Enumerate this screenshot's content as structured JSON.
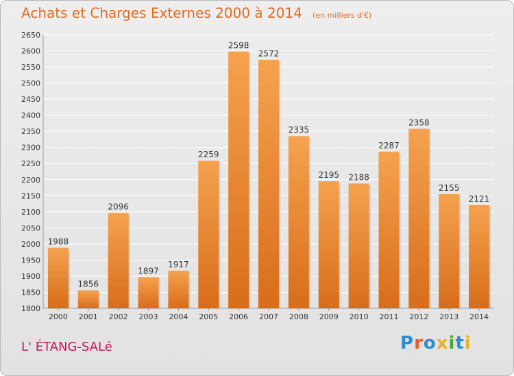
{
  "title": "Achats et Charges Externes 2000 à 2014",
  "subtitle": "(en milliers d'€)",
  "location": "L' ÉTANG-SALé",
  "logo": {
    "text": "Proxiti",
    "letter_colors": [
      "#2a8fd0",
      "#e85a2a",
      "#2a8fd0",
      "#e8b02a",
      "#4aa83a",
      "#2a8fd0",
      "#e8b02a"
    ]
  },
  "colors": {
    "title": "#e26a21",
    "location": "#c0185a",
    "bar_top": "#f5a24f",
    "bar_bottom": "#d86d1a",
    "grid": "#ffffff",
    "axis_text": "#333333"
  },
  "chart_data": {
    "type": "bar",
    "categories": [
      "2000",
      "2001",
      "2002",
      "2003",
      "2004",
      "2005",
      "2006",
      "2007",
      "2008",
      "2009",
      "2010",
      "2011",
      "2012",
      "2013",
      "2014"
    ],
    "values": [
      1988,
      1856,
      2096,
      1897,
      1917,
      2259,
      2598,
      2572,
      2335,
      2195,
      2188,
      2287,
      2358,
      2155,
      2121
    ],
    "ylim": [
      1800,
      2650
    ],
    "ytick_step": 50,
    "grid": true,
    "data_labels": true
  }
}
